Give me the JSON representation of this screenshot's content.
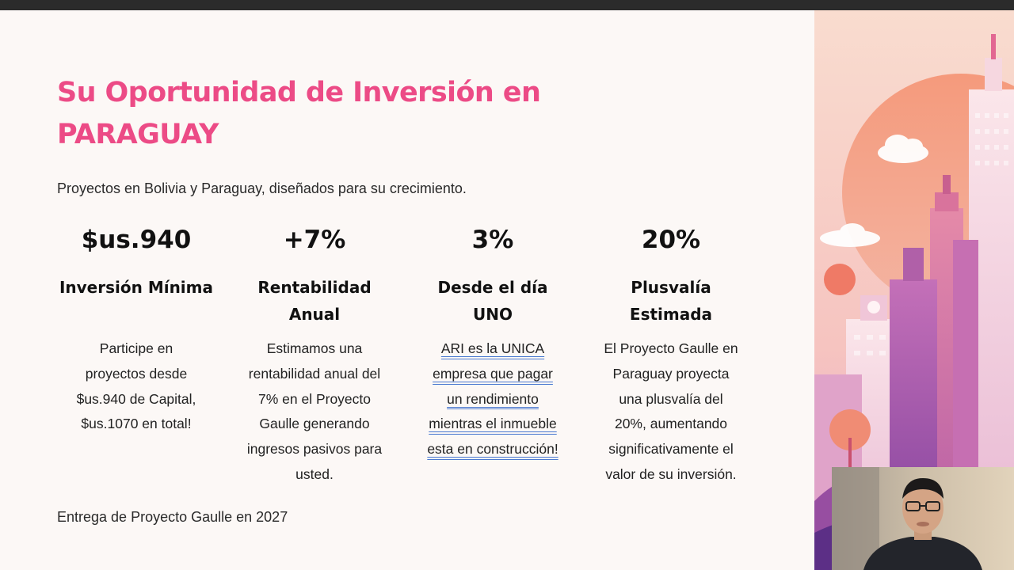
{
  "slide": {
    "title_line1": "Su Oportunidad de Inversión en",
    "title_line2": "PARAGUAY",
    "subtitle": "Proyectos en Bolivia y Paraguay, diseñados para su crecimiento.",
    "columns": [
      {
        "stat": "$us.940",
        "heading": [
          "Inversión Mínima"
        ],
        "desc": [
          "Participe en",
          "proyectos desde",
          "$us.940 de Capital,",
          "$us.1070 en total!"
        ]
      },
      {
        "stat": "+7%",
        "heading": [
          "Rentabilidad",
          "Anual"
        ],
        "desc": [
          "Estimamos una",
          "rentabilidad anual del",
          "7% en el Proyecto",
          "Gaulle generando",
          "ingresos pasivos para",
          "usted."
        ]
      },
      {
        "stat": "3%",
        "heading": [
          "Desde el día",
          "UNO"
        ],
        "desc": [
          "ARI es la UNICA",
          "empresa que pagar",
          "un rendimiento",
          "mientras el inmueble",
          "esta en construcción!"
        ]
      },
      {
        "stat": "20%",
        "heading": [
          "Plusvalía",
          "Estimada"
        ],
        "desc": [
          "El Proyecto Gaulle en",
          "Paraguay proyecta",
          "una plusvalía del",
          "20%, aumentando",
          "significativamente el",
          "valor de su inversión."
        ]
      }
    ],
    "footer": "Entrega de Proyecto Gaulle en 2027"
  },
  "colors": {
    "title": "#ec4b86",
    "link_underline": "#4a78d0",
    "background": "#fcf8f6"
  },
  "icons": {
    "illustration": "city-skyline-illustration",
    "webcam": "presenter-webcam-feed"
  }
}
